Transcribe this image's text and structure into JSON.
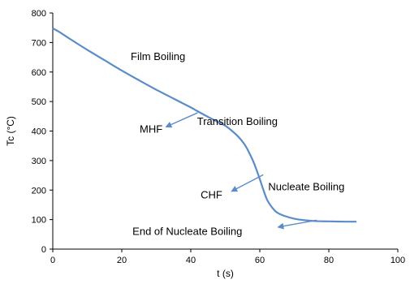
{
  "chart_data": {
    "type": "line",
    "xlabel": "t (s)",
    "ylabel": "Tc (°C)",
    "xlim": [
      0,
      100
    ],
    "ylim": [
      0,
      800
    ],
    "xticks": [
      0,
      20,
      40,
      60,
      80,
      100
    ],
    "yticks": [
      0,
      100,
      200,
      300,
      400,
      500,
      600,
      700,
      800
    ],
    "grid": false,
    "line_color": "#5B8CC8",
    "series": [
      {
        "x": [
          0,
          2,
          5,
          10,
          15,
          20,
          25,
          30,
          35,
          40,
          42,
          45,
          48,
          50,
          52,
          54,
          56,
          58,
          59,
          60,
          61,
          62,
          63,
          64,
          65,
          67,
          70,
          73,
          76,
          80,
          85,
          88
        ],
        "y": [
          748,
          735,
          712,
          675,
          640,
          605,
          572,
          540,
          510,
          480,
          467,
          448,
          430,
          418,
          400,
          378,
          347,
          300,
          270,
          237,
          202,
          170,
          150,
          135,
          124,
          113,
          103,
          98,
          95,
          94,
          93,
          93
        ]
      }
    ],
    "annotations": [
      {
        "text": "Film Boiling",
        "x": 30.5,
        "y": 640
      },
      {
        "text": "Transition Boiling",
        "x": 53.5,
        "y": 420
      },
      {
        "text": "Nucleate Boiling",
        "x": 73.5,
        "y": 200
      },
      {
        "text": "End of Nucleate Boiling",
        "x": 39,
        "y": 48
      },
      {
        "text": "MHF",
        "x": 28.5,
        "y": 395
      },
      {
        "text": "CHF",
        "x": 46,
        "y": 172
      }
    ],
    "arrows": [
      {
        "name": "mhf",
        "from": [
          42,
          462
        ],
        "to": [
          33,
          415
        ]
      },
      {
        "name": "chf",
        "from": [
          61,
          252
        ],
        "to": [
          52,
          197
        ]
      },
      {
        "name": "end",
        "from": [
          76.5,
          98
        ],
        "to": [
          65.5,
          75
        ]
      }
    ]
  }
}
